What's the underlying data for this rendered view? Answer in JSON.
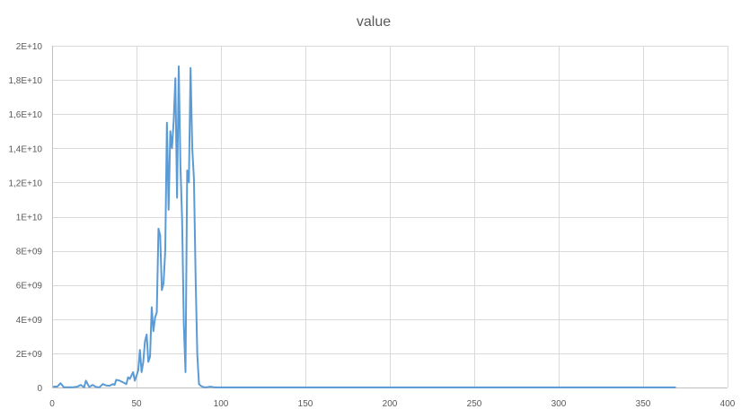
{
  "chart_data": {
    "type": "line",
    "title": "value",
    "xlabel": "",
    "ylabel": "",
    "xlim": [
      0,
      400
    ],
    "ylim": [
      0,
      20000000000
    ],
    "x_ticks": [
      0,
      50,
      100,
      150,
      200,
      250,
      300,
      350,
      400
    ],
    "x_tick_labels": [
      "0",
      "50",
      "100",
      "150",
      "200",
      "250",
      "300",
      "350",
      "400"
    ],
    "y_ticks": [
      0,
      2000000000,
      4000000000,
      6000000000,
      8000000000,
      10000000000,
      12000000000,
      14000000000,
      16000000000,
      18000000000,
      20000000000
    ],
    "y_tick_labels": [
      "0",
      "2E+09",
      "4E+09",
      "6E+09",
      "8E+09",
      "1E+10",
      "1,2E+10",
      "1,4E+10",
      "1,6E+10",
      "1,8E+10",
      "2E+10"
    ],
    "grid": true,
    "legend": "none",
    "series": [
      {
        "color": "#5b9bd5",
        "x": [
          1,
          3,
          5,
          7,
          9,
          12,
          15,
          17,
          19,
          20,
          22,
          24,
          26,
          28,
          30,
          32,
          34,
          36,
          37,
          38,
          40,
          42,
          44,
          45,
          46,
          48,
          49,
          50,
          51,
          52,
          53,
          54,
          55,
          56,
          57,
          58,
          59,
          60,
          61,
          62,
          63,
          64,
          65,
          66,
          67,
          68,
          69,
          70,
          71,
          72,
          73,
          74,
          75,
          76,
          77,
          78,
          79,
          80,
          81,
          82,
          83,
          84,
          85,
          86,
          87,
          88,
          90,
          92,
          94,
          96,
          98,
          100,
          150,
          200,
          250,
          300,
          350,
          369
        ],
        "y": [
          50000000,
          50000000,
          250000000,
          10000000,
          10000000,
          10000000,
          50000000,
          150000000,
          10000000,
          400000000,
          30000000,
          150000000,
          30000000,
          10000000,
          200000000,
          120000000,
          100000000,
          200000000,
          150000000,
          450000000,
          400000000,
          300000000,
          200000000,
          600000000,
          500000000,
          900000000,
          400000000,
          700000000,
          1000000000,
          2200000000,
          900000000,
          1500000000,
          2700000000,
          3100000000,
          1500000000,
          1800000000,
          4700000000,
          3300000000,
          4100000000,
          4400000000,
          9300000000,
          8900000000,
          5700000000,
          6100000000,
          8000000000,
          15500000000,
          10400000000,
          15000000000,
          14000000000,
          15600000000,
          18100000000,
          11100000000,
          18800000000,
          13000000000,
          9800000000,
          3700000000,
          900000000,
          12700000000,
          12000000000,
          18700000000,
          14000000000,
          12200000000,
          6400000000,
          1900000000,
          200000000,
          100000000,
          10000000,
          20000000,
          50000000,
          10000000,
          5000000,
          5000000,
          5000000,
          5000000,
          5000000,
          5000000,
          5000000,
          5000000
        ]
      }
    ]
  }
}
